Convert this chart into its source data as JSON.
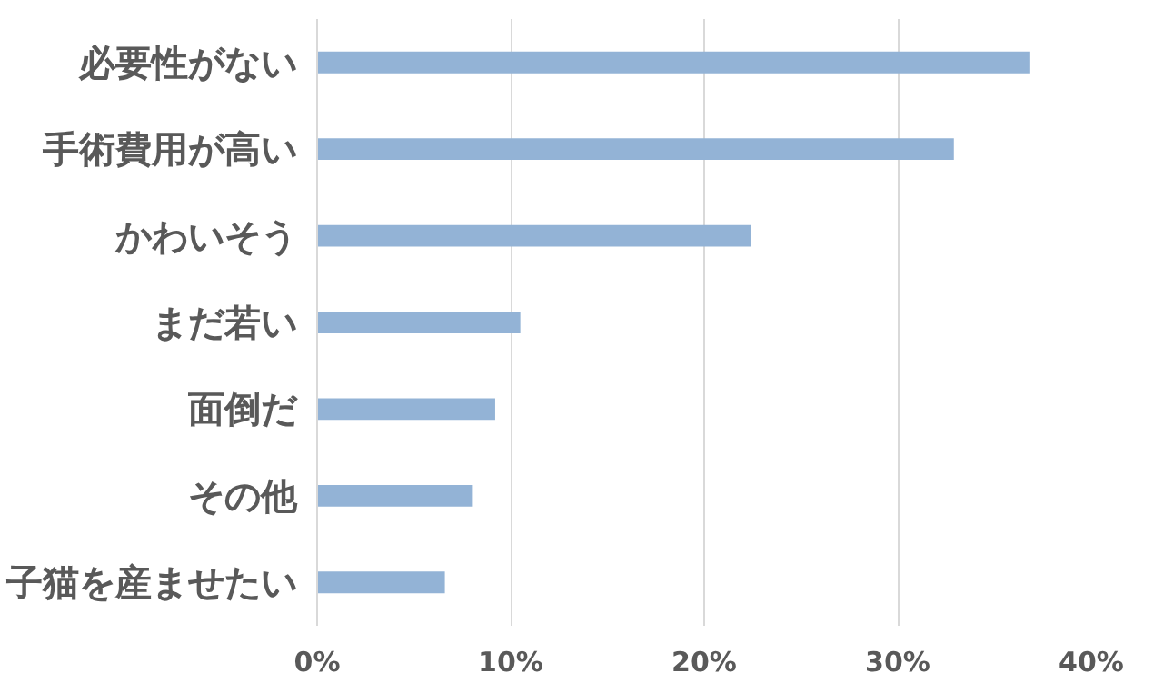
{
  "chart_data": {
    "type": "bar",
    "orientation": "horizontal",
    "categories": [
      "必要性がない",
      "手術費用が高い",
      "かわいそう",
      "まだ若い",
      "面倒だ",
      "その他",
      "子猫を産ませたい"
    ],
    "values": [
      0.368,
      0.329,
      0.224,
      0.105,
      0.092,
      0.08,
      0.066
    ],
    "color": "#93b3d6",
    "xlim": [
      0,
      0.4
    ],
    "xticks": [
      {
        "value": 0,
        "label": "0%"
      },
      {
        "value": 0.1,
        "label": "10%"
      },
      {
        "value": 0.2,
        "label": "20%"
      },
      {
        "value": 0.3,
        "label": "30%"
      },
      {
        "value": 0.4,
        "label": "40%"
      }
    ],
    "grid": "x"
  }
}
